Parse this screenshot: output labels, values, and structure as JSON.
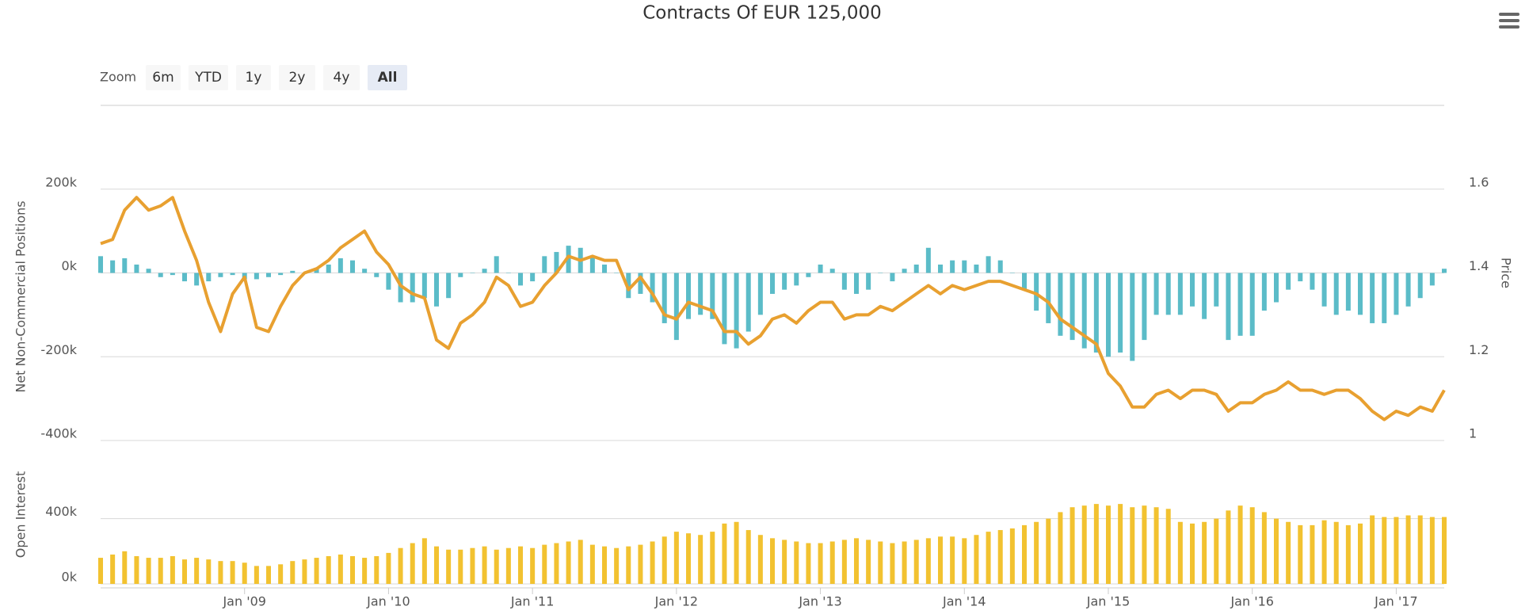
{
  "chart_data": {
    "type": "stock",
    "title": "Contracts Of EUR 125,000",
    "range_selector": {
      "label": "Zoom",
      "buttons": [
        "6m",
        "YTD",
        "1y",
        "2y",
        "4y",
        "All"
      ],
      "selected": 5
    },
    "x": [
      "2008-01",
      "2008-02",
      "2008-03",
      "2008-04",
      "2008-05",
      "2008-06",
      "2008-07",
      "2008-08",
      "2008-09",
      "2008-10",
      "2008-11",
      "2008-12",
      "2009-01",
      "2009-02",
      "2009-03",
      "2009-04",
      "2009-05",
      "2009-06",
      "2009-07",
      "2009-08",
      "2009-09",
      "2009-10",
      "2009-11",
      "2009-12",
      "2010-01",
      "2010-02",
      "2010-03",
      "2010-04",
      "2010-05",
      "2010-06",
      "2010-07",
      "2010-08",
      "2010-09",
      "2010-10",
      "2010-11",
      "2010-12",
      "2011-01",
      "2011-02",
      "2011-03",
      "2011-04",
      "2011-05",
      "2011-06",
      "2011-07",
      "2011-08",
      "2011-09",
      "2011-10",
      "2011-11",
      "2011-12",
      "2012-01",
      "2012-02",
      "2012-03",
      "2012-04",
      "2012-05",
      "2012-06",
      "2012-07",
      "2012-08",
      "2012-09",
      "2012-10",
      "2012-11",
      "2012-12",
      "2013-01",
      "2013-02",
      "2013-03",
      "2013-04",
      "2013-05",
      "2013-06",
      "2013-07",
      "2013-08",
      "2013-09",
      "2013-10",
      "2013-11",
      "2013-12",
      "2014-01",
      "2014-02",
      "2014-03",
      "2014-04",
      "2014-05",
      "2014-06",
      "2014-07",
      "2014-08",
      "2014-09",
      "2014-10",
      "2014-11",
      "2014-12",
      "2015-01",
      "2015-02",
      "2015-03",
      "2015-04",
      "2015-05",
      "2015-06",
      "2015-07",
      "2015-08",
      "2015-09",
      "2015-10",
      "2015-11",
      "2015-12",
      "2016-01",
      "2016-02",
      "2016-03",
      "2016-04",
      "2016-05",
      "2016-06",
      "2016-07",
      "2016-08",
      "2016-09",
      "2016-10",
      "2016-11",
      "2016-12",
      "2017-01",
      "2017-02",
      "2017-03",
      "2017-04",
      "2017-05"
    ],
    "xticks": [
      {
        "value": "2009-01",
        "label": "Jan '09"
      },
      {
        "value": "2010-01",
        "label": "Jan '10"
      },
      {
        "value": "2011-01",
        "label": "Jan '11"
      },
      {
        "value": "2012-01",
        "label": "Jan '12"
      },
      {
        "value": "2013-01",
        "label": "Jan '13"
      },
      {
        "value": "2014-01",
        "label": "Jan '14"
      },
      {
        "value": "2015-01",
        "label": "Jan '15"
      },
      {
        "value": "2016-01",
        "label": "Jan '16"
      },
      {
        "value": "2017-01",
        "label": "Jan '17"
      }
    ],
    "panes": [
      {
        "ylabel": "Net Non-Commercial Positions",
        "ylim": [
          -400000,
          400000
        ],
        "yticks": [
          {
            "value": -400000,
            "label": "-400k"
          },
          {
            "value": -200000,
            "label": "-200k"
          },
          {
            "value": 0,
            "label": "0k"
          },
          {
            "value": 200000,
            "label": "200k"
          }
        ],
        "y2label": "Price",
        "y2lim": [
          1.0,
          1.8
        ],
        "y2ticks": [
          1,
          1.2,
          1.4,
          1.6
        ],
        "grid": true,
        "series": [
          {
            "type": "bar",
            "color": "#5bbcc8",
            "values": [
              40000,
              30000,
              35000,
              20000,
              10000,
              -10000,
              -5000,
              -20000,
              -30000,
              -20000,
              -10000,
              -5000,
              -15000,
              -15000,
              -10000,
              -5000,
              5000,
              0,
              10000,
              20000,
              35000,
              30000,
              10000,
              -10000,
              -40000,
              -70000,
              -70000,
              -60000,
              -80000,
              -60000,
              -10000,
              0,
              10000,
              40000,
              0,
              -30000,
              -20000,
              40000,
              50000,
              65000,
              60000,
              40000,
              20000,
              0,
              -60000,
              -50000,
              -70000,
              -120000,
              -160000,
              -110000,
              -100000,
              -110000,
              -170000,
              -180000,
              -140000,
              -100000,
              -50000,
              -40000,
              -30000,
              -10000,
              20000,
              10000,
              -40000,
              -50000,
              -40000,
              0,
              -20000,
              10000,
              20000,
              60000,
              20000,
              30000,
              30000,
              20000,
              40000,
              30000,
              0,
              -40000,
              -90000,
              -120000,
              -150000,
              -160000,
              -180000,
              -190000,
              -200000,
              -190000,
              -210000,
              -160000,
              -100000,
              -100000,
              -100000,
              -80000,
              -110000,
              -80000,
              -160000,
              -150000,
              -150000,
              -90000,
              -70000,
              -40000,
              -20000,
              -40000,
              -80000,
              -100000,
              -90000,
              -100000,
              -120000,
              -120000,
              -100000,
              -80000,
              -60000,
              -30000,
              10000
            ]
          },
          {
            "type": "line",
            "axis": "y2",
            "color": "#e8a030",
            "values": [
              1.47,
              1.48,
              1.55,
              1.58,
              1.55,
              1.56,
              1.58,
              1.5,
              1.43,
              1.33,
              1.26,
              1.35,
              1.39,
              1.27,
              1.26,
              1.32,
              1.37,
              1.4,
              1.41,
              1.43,
              1.46,
              1.48,
              1.5,
              1.45,
              1.42,
              1.37,
              1.35,
              1.34,
              1.24,
              1.22,
              1.28,
              1.3,
              1.33,
              1.39,
              1.37,
              1.32,
              1.33,
              1.37,
              1.4,
              1.44,
              1.43,
              1.44,
              1.43,
              1.43,
              1.36,
              1.39,
              1.35,
              1.3,
              1.29,
              1.33,
              1.32,
              1.31,
              1.26,
              1.26,
              1.23,
              1.25,
              1.29,
              1.3,
              1.28,
              1.31,
              1.33,
              1.33,
              1.29,
              1.3,
              1.3,
              1.32,
              1.31,
              1.33,
              1.35,
              1.37,
              1.35,
              1.37,
              1.36,
              1.37,
              1.38,
              1.38,
              1.37,
              1.36,
              1.35,
              1.33,
              1.29,
              1.27,
              1.25,
              1.23,
              1.16,
              1.13,
              1.08,
              1.08,
              1.11,
              1.12,
              1.1,
              1.12,
              1.12,
              1.11,
              1.07,
              1.09,
              1.09,
              1.11,
              1.12,
              1.14,
              1.12,
              1.12,
              1.11,
              1.12,
              1.12,
              1.1,
              1.07,
              1.05,
              1.07,
              1.06,
              1.08,
              1.07,
              1.12
            ]
          }
        ]
      },
      {
        "ylabel": "Open Interest",
        "ylim": [
          0,
          850000
        ],
        "yticks": [
          {
            "value": 0,
            "label": "0k"
          },
          {
            "value": 400000,
            "label": "400k"
          }
        ],
        "grid": true,
        "series": [
          {
            "type": "bar",
            "color": "#f2c230",
            "values": [
              160000,
              180000,
              200000,
              170000,
              160000,
              160000,
              170000,
              150000,
              160000,
              150000,
              140000,
              140000,
              130000,
              110000,
              110000,
              120000,
              140000,
              150000,
              160000,
              170000,
              180000,
              170000,
              160000,
              170000,
              190000,
              220000,
              250000,
              280000,
              230000,
              210000,
              210000,
              220000,
              230000,
              210000,
              220000,
              230000,
              220000,
              240000,
              250000,
              260000,
              270000,
              240000,
              230000,
              220000,
              230000,
              240000,
              260000,
              290000,
              320000,
              310000,
              300000,
              320000,
              370000,
              380000,
              330000,
              300000,
              280000,
              270000,
              260000,
              250000,
              250000,
              260000,
              270000,
              280000,
              270000,
              260000,
              250000,
              260000,
              270000,
              280000,
              290000,
              290000,
              280000,
              300000,
              320000,
              330000,
              340000,
              360000,
              380000,
              400000,
              440000,
              470000,
              480000,
              490000,
              480000,
              490000,
              470000,
              480000,
              470000,
              460000,
              380000,
              370000,
              380000,
              400000,
              450000,
              480000,
              470000,
              440000,
              400000,
              380000,
              360000,
              360000,
              390000,
              380000,
              360000,
              370000,
              420000,
              410000,
              410000,
              420000,
              420000,
              410000,
              410000
            ]
          }
        ]
      }
    ]
  }
}
